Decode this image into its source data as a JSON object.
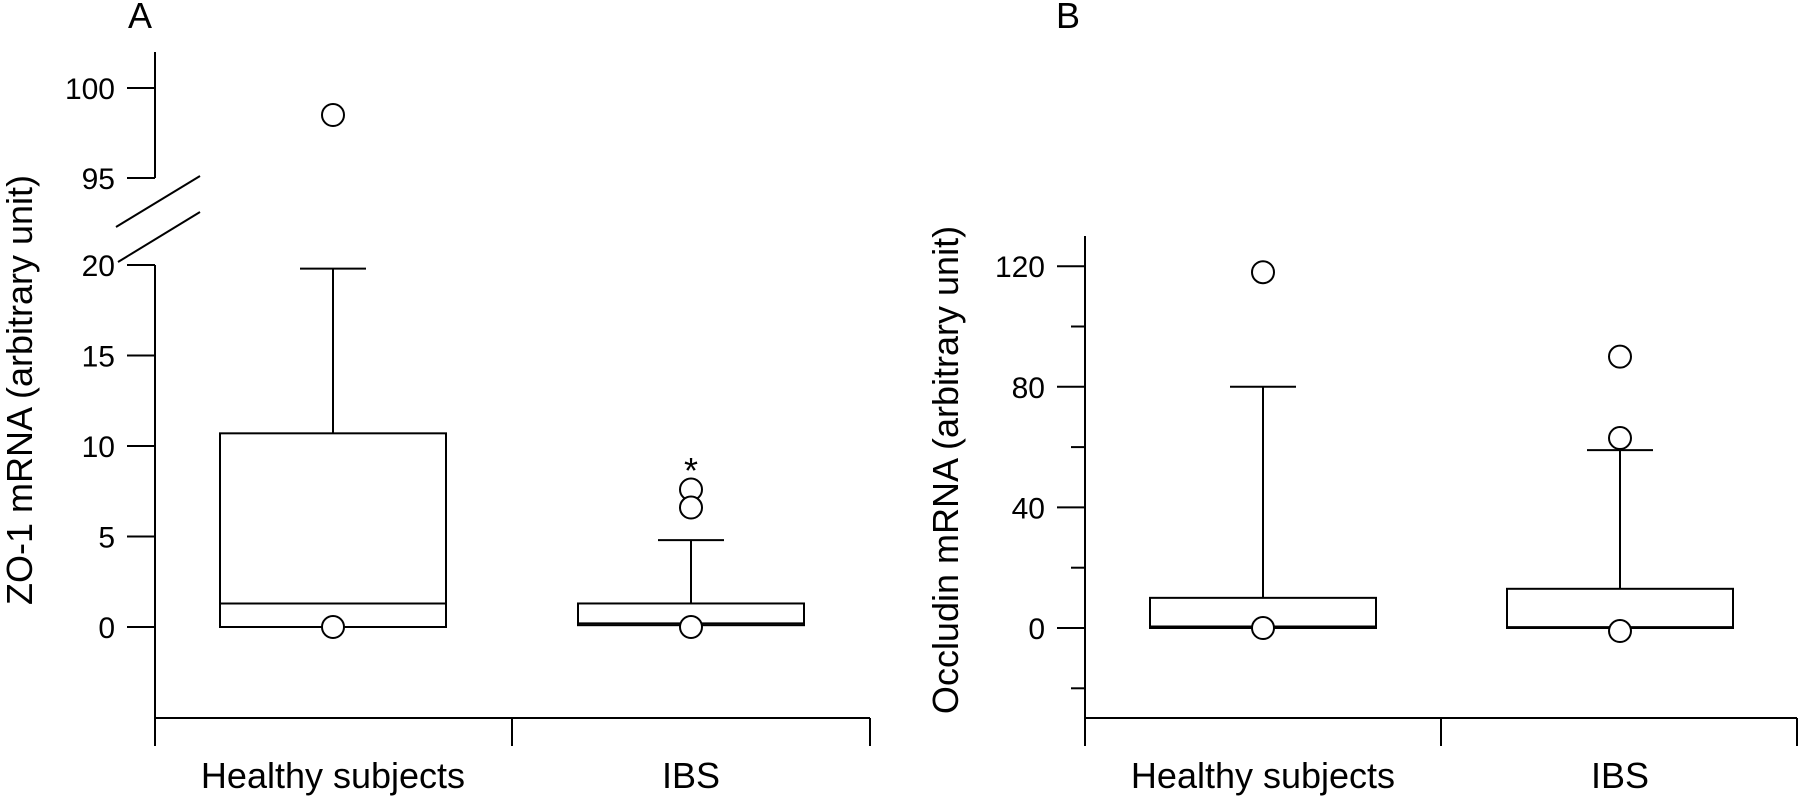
{
  "chart_data": [
    {
      "type": "box",
      "panel_label": "A",
      "ylabel": "ZO-1 mRNA (arbitrary unit)",
      "categories": [
        "Healthy subjects",
        "IBS"
      ],
      "y_axis_break": {
        "lower_range": [
          0,
          20
        ],
        "upper_range": [
          95,
          100
        ]
      },
      "ylim": [
        -5,
        102
      ],
      "yticks_lower": [
        0,
        5,
        10,
        15,
        20
      ],
      "yticks_upper": [
        95,
        100
      ],
      "boxes": [
        {
          "category": "Healthy subjects",
          "q1": 0,
          "median": 1.3,
          "q3": 10.7,
          "whisker_low": 0,
          "whisker_high": 19.8,
          "outliers": [
            98.5,
            0
          ]
        },
        {
          "category": "IBS",
          "q1": 0.1,
          "median": 0.2,
          "q3": 1.3,
          "whisker_low": 0.1,
          "whisker_high": 4.8,
          "outliers": [
            7.6,
            6.6,
            0
          ]
        }
      ],
      "annotations": [
        {
          "category": "IBS",
          "text": "*",
          "y": 9.5
        }
      ]
    },
    {
      "type": "box",
      "panel_label": "B",
      "ylabel": "Occludin mRNA (arbitrary unit)",
      "categories": [
        "Healthy subjects",
        "IBS"
      ],
      "ylim": [
        -30,
        130
      ],
      "yticks": [
        0,
        40,
        80,
        120
      ],
      "boxes": [
        {
          "category": "Healthy subjects",
          "q1": 0,
          "median": 0.5,
          "q3": 10,
          "whisker_low": 0,
          "whisker_high": 80,
          "outliers": [
            118,
            0
          ]
        },
        {
          "category": "IBS",
          "q1": 0,
          "median": 0.3,
          "q3": 13,
          "whisker_low": 0,
          "whisker_high": 59,
          "outliers": [
            90,
            63,
            -1
          ]
        }
      ]
    }
  ]
}
